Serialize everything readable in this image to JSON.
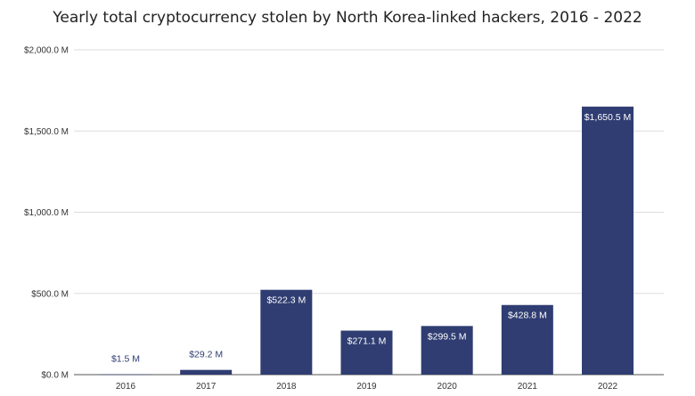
{
  "chart_data": {
    "type": "bar",
    "title": "Yearly total cryptocurrency stolen by North Korea-linked hackers, 2016 - 2022",
    "xlabel": "",
    "ylabel": "",
    "categories": [
      "2016",
      "2017",
      "2018",
      "2019",
      "2020",
      "2021",
      "2022"
    ],
    "values": [
      1.5,
      29.2,
      522.3,
      271.1,
      299.5,
      428.8,
      1650.5
    ],
    "data_labels": [
      "$1.5 M",
      "$29.2 M",
      "$522.3 M",
      "$271.1 M",
      "$299.5 M",
      "$428.8 M",
      "$1,650.5 M"
    ],
    "ylim": [
      0,
      2000
    ],
    "yticks": [
      0,
      500,
      1000,
      1500,
      2000
    ],
    "ytick_labels": [
      "$0.0 M",
      "$500.0 M",
      "$1,000.0 M",
      "$1,500.0 M",
      "$2,000.0 M"
    ],
    "grid": true,
    "colors": {
      "bar": "#2f3d72",
      "label_outside": "#2f3d72",
      "label_inside": "#ffffff",
      "grid": "#dddddd"
    }
  }
}
